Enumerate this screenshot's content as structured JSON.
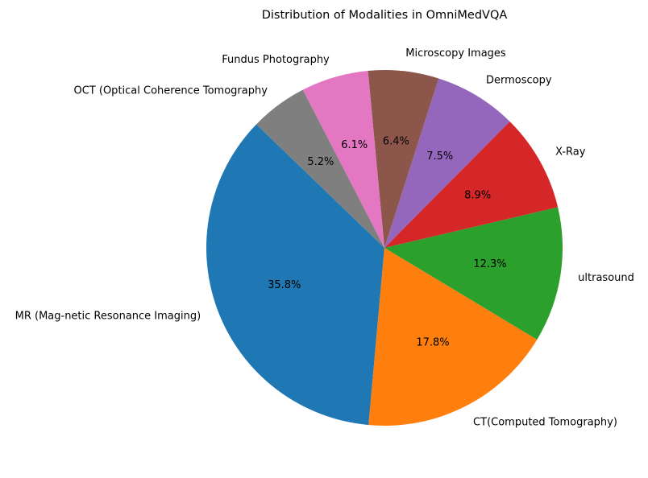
{
  "chart_data": {
    "type": "pie",
    "title": "Distribution of Modalities in OmniMedVQA",
    "start_angle_deg": 136,
    "direction": "counterclockwise",
    "slices": [
      {
        "label": "MR (Mag-netic Resonance Imaging)",
        "value": 35.8,
        "pct_label": "35.8%",
        "color": "#1f77b4"
      },
      {
        "label": "CT(Computed Tomography)",
        "value": 17.8,
        "pct_label": "17.8%",
        "color": "#ff7f0e"
      },
      {
        "label": "ultrasound",
        "value": 12.3,
        "pct_label": "12.3%",
        "color": "#2ca02c"
      },
      {
        "label": "X-Ray",
        "value": 8.9,
        "pct_label": "8.9%",
        "color": "#d62728"
      },
      {
        "label": "Dermoscopy",
        "value": 7.5,
        "pct_label": "7.5%",
        "color": "#9467bd"
      },
      {
        "label": "Microscopy Images",
        "value": 6.4,
        "pct_label": "6.4%",
        "color": "#8c564b"
      },
      {
        "label": "Fundus Photography",
        "value": 6.1,
        "pct_label": "6.1%",
        "color": "#e377c2"
      },
      {
        "label": "OCT (Optical Coherence Tomography",
        "value": 5.2,
        "pct_label": "5.2%",
        "color": "#7f7f7f"
      }
    ]
  }
}
